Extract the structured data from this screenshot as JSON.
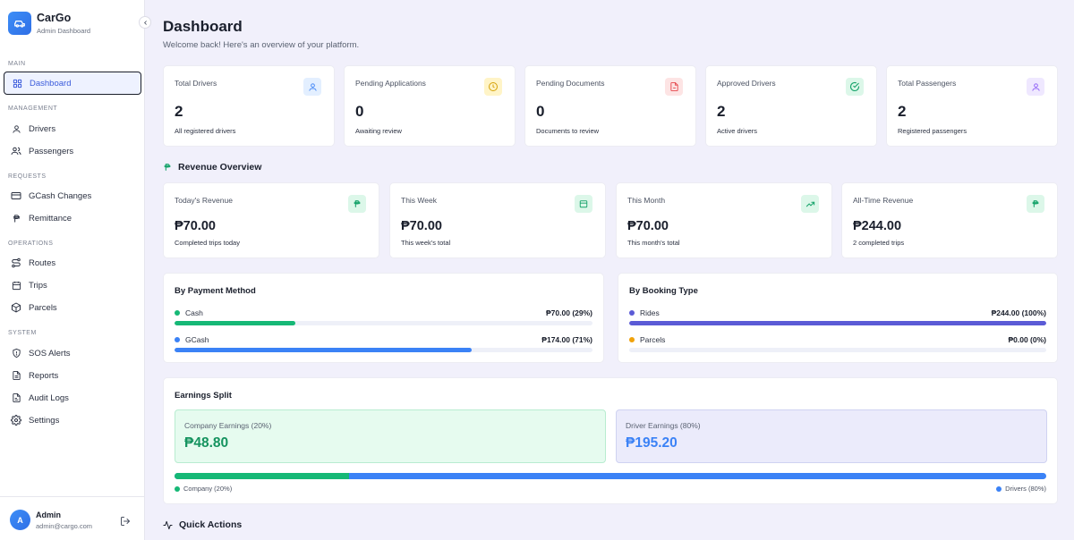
{
  "brand": {
    "name": "CarGo",
    "subtitle": "Admin Dashboard"
  },
  "sidebar": {
    "sections": {
      "main": "MAIN",
      "management": "MANAGEMENT",
      "requests": "REQUESTS",
      "operations": "OPERATIONS",
      "system": "SYSTEM"
    },
    "items": {
      "dashboard": "Dashboard",
      "drivers": "Drivers",
      "passengers": "Passengers",
      "gcash": "GCash Changes",
      "remittance": "Remittance",
      "routes": "Routes",
      "trips": "Trips",
      "parcels": "Parcels",
      "sos": "SOS Alerts",
      "reports": "Reports",
      "audit": "Audit Logs",
      "settings": "Settings"
    },
    "active": "dashboard"
  },
  "user": {
    "initial": "A",
    "name": "Admin",
    "email": "admin@cargo.com"
  },
  "page": {
    "title": "Dashboard",
    "subtitle": "Welcome back! Here's an overview of your platform."
  },
  "stats": [
    {
      "title": "Total Drivers",
      "value": "2",
      "desc": "All registered drivers",
      "icon": "user-icon",
      "color": "#3b82f6",
      "bg": "#e3efff"
    },
    {
      "title": "Pending Applications",
      "value": "0",
      "desc": "Awaiting review",
      "icon": "clock-icon",
      "color": "#d4a106",
      "bg": "#fff4c7"
    },
    {
      "title": "Pending Documents",
      "value": "0",
      "desc": "Documents to review",
      "icon": "file-icon",
      "color": "#e5484d",
      "bg": "#fde4e4"
    },
    {
      "title": "Approved Drivers",
      "value": "2",
      "desc": "Active drivers",
      "icon": "check-circle-icon",
      "color": "#16a36a",
      "bg": "#dcf7e9"
    },
    {
      "title": "Total Passengers",
      "value": "2",
      "desc": "Registered passengers",
      "icon": "user-icon",
      "color": "#8b5cf6",
      "bg": "#efe8ff"
    }
  ],
  "revenue": {
    "heading": "Revenue Overview",
    "cards": [
      {
        "title": "Today's Revenue",
        "value": "₱70.00",
        "desc": "Completed trips today",
        "icon": "peso-icon"
      },
      {
        "title": "This Week",
        "value": "₱70.00",
        "desc": "This week's total",
        "icon": "calendar-icon"
      },
      {
        "title": "This Month",
        "value": "₱70.00",
        "desc": "This month's total",
        "icon": "trending-up-icon"
      },
      {
        "title": "All-Time Revenue",
        "value": "₱244.00",
        "desc": "2 completed trips",
        "icon": "peso-icon"
      }
    ]
  },
  "payment": {
    "title": "By Payment Method",
    "rows": [
      {
        "label": "Cash",
        "value": "₱70.00 (29%)",
        "percent": 29,
        "color": "#16b876"
      },
      {
        "label": "GCash",
        "value": "₱174.00 (71%)",
        "percent": 71,
        "color": "#3b82f6"
      }
    ]
  },
  "booking": {
    "title": "By Booking Type",
    "rows": [
      {
        "label": "Rides",
        "value": "₱244.00 (100%)",
        "percent": 100,
        "color": "#5b5bd6"
      },
      {
        "label": "Parcels",
        "value": "₱0.00 (0%)",
        "percent": 0,
        "color": "#f0a20b"
      }
    ]
  },
  "earnings": {
    "title": "Earnings Split",
    "company_label": "Company Earnings (20%)",
    "company_value": "₱48.80",
    "driver_label": "Driver Earnings (80%)",
    "driver_value": "₱195.20",
    "company_percent": 20,
    "legend_company": "Company (20%)",
    "legend_drivers": "Drivers (80%)"
  },
  "quick_actions": {
    "heading": "Quick Actions"
  }
}
